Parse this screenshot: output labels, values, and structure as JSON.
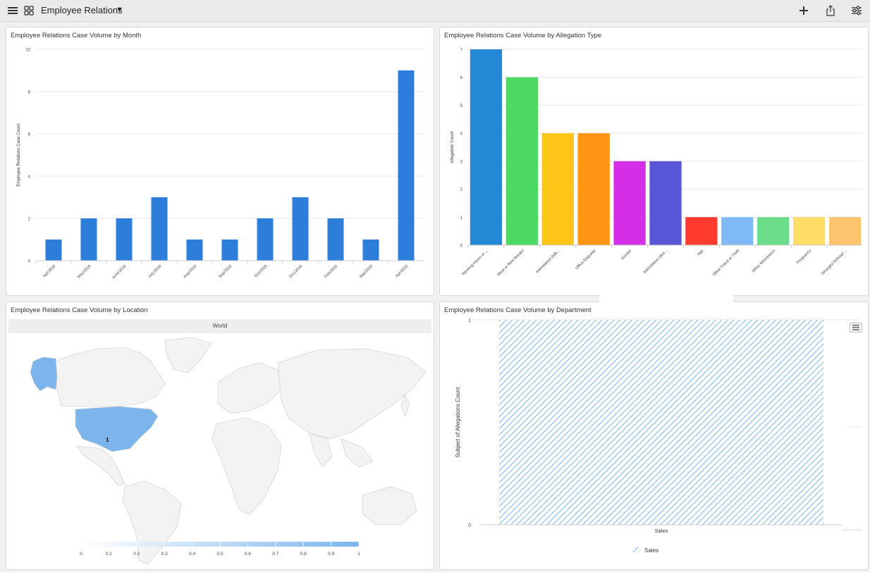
{
  "header": {
    "title": "Employee Relations",
    "icons": [
      "hamburger-menu-icon",
      "dashboard-grid-icon",
      "dropdown-caret-icon",
      "add-icon",
      "share-icon",
      "filter-settings-icon"
    ]
  },
  "panels": {
    "month": {
      "title": "Employee Relations Case Volume by Month"
    },
    "allegation": {
      "title": "Employee Relations Case Volume by Allegation Type"
    },
    "location": {
      "title": "Employee Relations Case Volume by Location",
      "map_header": "World",
      "marker_label": "1"
    },
    "department": {
      "title": "Employee Relations Case Volume by Department"
    }
  },
  "colors": {
    "primary_bar": "#2d7ddb",
    "map_highlight": "#7cb5ec",
    "map_base": "#f3f3f3"
  },
  "chart_data": [
    {
      "type": "bar",
      "title": "Employee Relations Case Volume by Month",
      "xlabel": "",
      "ylabel": "Employee Relations Case Count",
      "categories": [
        "Apr/2019",
        "May/2019",
        "June/2019",
        "July/2019",
        "Aug/2019",
        "Sep/2019",
        "Oct/2019",
        "Dec/2019",
        "Feb/2020",
        "Mar/2020",
        "Apr/2020"
      ],
      "values": [
        1,
        2,
        2,
        3,
        1,
        1,
        2,
        3,
        2,
        1,
        9
      ],
      "ylim": [
        0,
        10
      ],
      "yticks": [
        0,
        2,
        4,
        6,
        8,
        10
      ],
      "color": "#2d7ddb",
      "grid": true
    },
    {
      "type": "bar",
      "title": "Employee Relations Case Volume by Allegation Type",
      "xlabel": "",
      "ylabel": "Allegation Count",
      "categories": [
        "Working Hours or ...",
        "Meal or Rest Breaks",
        "Intimidation (bllb...",
        "Office Etiquette",
        "Gender",
        "Intimidation (dire...",
        "Age",
        "Other Fraud or Theft",
        "Other Misconduct",
        "Pregnancy",
        "Wrongful Refusal ..."
      ],
      "values": [
        7,
        6,
        4,
        4,
        3,
        3,
        1,
        1,
        1,
        1,
        1
      ],
      "colors": [
        "#2489d4",
        "#4cd964",
        "#ffc61a",
        "#ff9512",
        "#d42ee6",
        "#5856d6",
        "#ff3b30",
        "#7fbaf7",
        "#6cdc8a",
        "#ffdd66",
        "#ffc46e"
      ],
      "ylim": [
        0,
        7
      ],
      "yticks": [
        0,
        1,
        2,
        3,
        4,
        5,
        6,
        7
      ],
      "grid": true
    },
    {
      "type": "heatmap",
      "title": "Employee Relations Case Volume by Location",
      "map": "World",
      "highlighted_regions": [
        "United States",
        "Alaska"
      ],
      "region_value": 1,
      "colorbar_ticks": [
        "0",
        "0.1",
        "0.2",
        "0.3",
        "0.4",
        "0.5",
        "0.6",
        "0.7",
        "0.8",
        "0.9",
        "1"
      ],
      "colorbar_range": [
        0,
        1
      ]
    },
    {
      "type": "bar",
      "title": "Employee Relations Case Volume by Department",
      "ylabel": "Subject of Allegations Count",
      "categories": [
        "Sales"
      ],
      "values": [
        1
      ],
      "yticks": [
        "0",
        "1"
      ],
      "ylim": [
        0,
        1
      ],
      "legend": [
        "Sales"
      ],
      "fill": "hatched",
      "color": "#7cb5ec"
    }
  ]
}
